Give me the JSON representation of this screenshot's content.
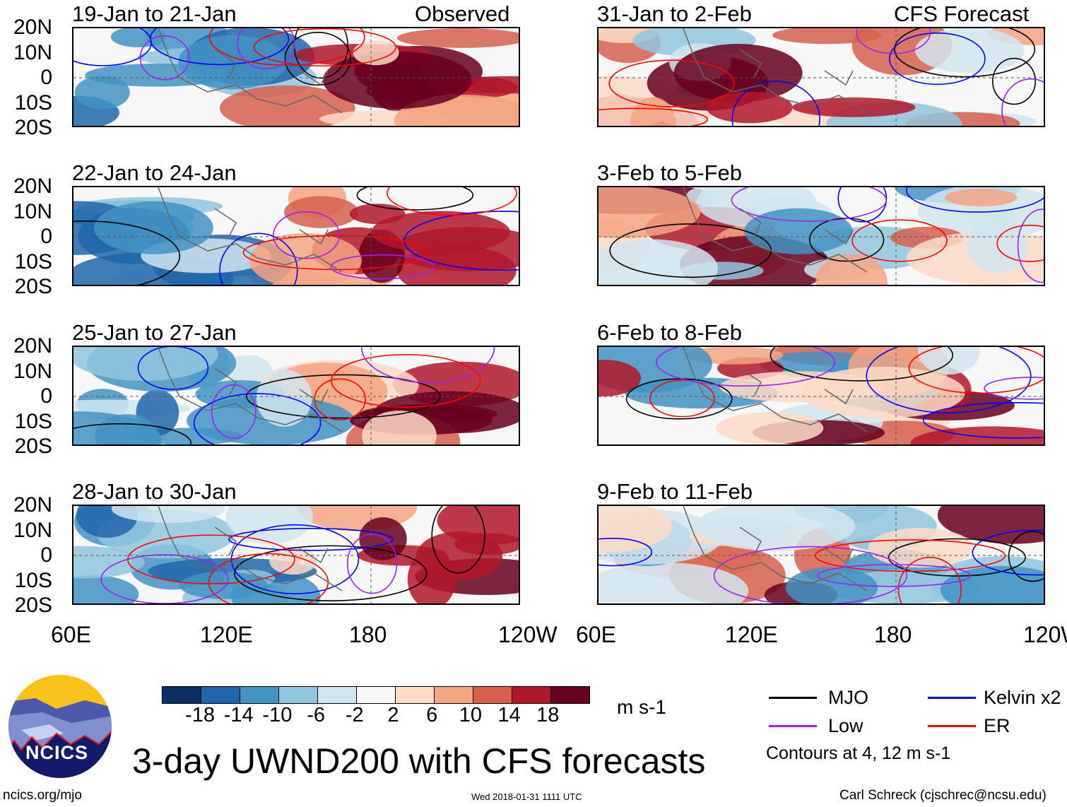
{
  "figure_title": "3-day UWND200 with CFS forecasts",
  "observed_label": "Observed",
  "forecast_label": "CFS Forecast",
  "panels": [
    {
      "title": "19-Jan to 21-Jan",
      "type": "observed"
    },
    {
      "title": "22-Jan to 24-Jan",
      "type": "observed"
    },
    {
      "title": "25-Jan to 27-Jan",
      "type": "observed"
    },
    {
      "title": "28-Jan to 30-Jan",
      "type": "observed"
    },
    {
      "title": "31-Jan to 2-Feb",
      "type": "forecast"
    },
    {
      "title": "3-Feb to 5-Feb",
      "type": "forecast"
    },
    {
      "title": "6-Feb to 8-Feb",
      "type": "forecast"
    },
    {
      "title": "9-Feb to 11-Feb",
      "type": "forecast"
    }
  ],
  "lat_labels": [
    "20N",
    "10N",
    "0",
    "10S",
    "20S"
  ],
  "lon_labels": [
    "60E",
    "120E",
    "180",
    "120W"
  ],
  "colorbar": {
    "unit": "m s-1",
    "labels": [
      "-18",
      "-14",
      "-10",
      "-6",
      "-2",
      "2",
      "6",
      "10",
      "14",
      "18"
    ],
    "colors": [
      "#0a3062",
      "#2166ac",
      "#4393c3",
      "#92c5de",
      "#d1e5f0",
      "#f7f7f7",
      "#fddbc7",
      "#f4a582",
      "#d6604d",
      "#b2182b",
      "#67001f"
    ]
  },
  "legend": {
    "items": [
      {
        "label": "MJO",
        "color": "#000000"
      },
      {
        "label": "Kelvin x2",
        "color": "#0000ff"
      },
      {
        "label": "Low",
        "color": "#a020f0"
      },
      {
        "label": "ER",
        "color": "#ff0000"
      }
    ],
    "note": "Contours at 4, 12 m s-1"
  },
  "footer": {
    "left": "ncics.org/mjo",
    "center": "Wed 2018-01-31 1111 UTC",
    "right": "Carl Schreck (cjschrec@ncsu.edu)"
  },
  "logo_text": "NCICS"
}
